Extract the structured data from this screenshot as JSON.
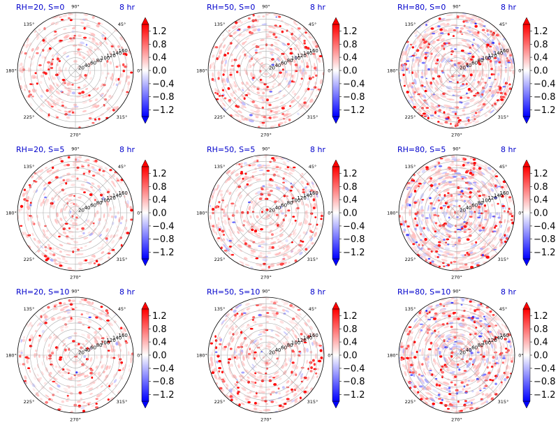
{
  "figure": {
    "time_label": "8 hr",
    "row_labels": [
      "S=0",
      "S=5",
      "S=10"
    ],
    "col_labels": [
      "RH=20",
      "RH=50",
      "RH=80"
    ]
  },
  "chart_data": [
    {
      "type": "scatter",
      "projection": "polar",
      "title": "RH=20, S=0",
      "annotation": "8 hr",
      "rh": 20,
      "s": 0,
      "density": 0.35,
      "rlim": [
        0,
        180
      ]
    },
    {
      "type": "scatter",
      "projection": "polar",
      "title": "RH=50, S=0",
      "annotation": "8 hr",
      "rh": 50,
      "s": 0,
      "density": 0.6,
      "rlim": [
        0,
        180
      ]
    },
    {
      "type": "scatter",
      "projection": "polar",
      "title": "RH=80, S=0",
      "annotation": "8 hr",
      "rh": 80,
      "s": 0,
      "density": 1.0,
      "rlim": [
        0,
        180
      ]
    },
    {
      "type": "scatter",
      "projection": "polar",
      "title": "RH=20, S=5",
      "annotation": "8 hr",
      "rh": 20,
      "s": 5,
      "density": 0.35,
      "rlim": [
        0,
        180
      ]
    },
    {
      "type": "scatter",
      "projection": "polar",
      "title": "RH=50, S=5",
      "annotation": "8 hr",
      "rh": 50,
      "s": 5,
      "density": 0.6,
      "rlim": [
        0,
        180
      ]
    },
    {
      "type": "scatter",
      "projection": "polar",
      "title": "RH=80, S=5",
      "annotation": "8 hr",
      "rh": 80,
      "s": 5,
      "density": 1.0,
      "rlim": [
        0,
        180
      ]
    },
    {
      "type": "scatter",
      "projection": "polar",
      "title": "RH=20, S=10",
      "annotation": "8 hr",
      "rh": 20,
      "s": 10,
      "density": 0.35,
      "rlim": [
        0,
        180
      ]
    },
    {
      "type": "scatter",
      "projection": "polar",
      "title": "RH=50, S=10",
      "annotation": "8 hr",
      "rh": 50,
      "s": 10,
      "density": 0.6,
      "rlim": [
        0,
        180
      ]
    },
    {
      "type": "scatter",
      "projection": "polar",
      "title": "RH=80, S=10",
      "annotation": "8 hr",
      "rh": 80,
      "s": 10,
      "density": 1.0,
      "rlim": [
        0,
        180
      ]
    }
  ],
  "axes": {
    "angular_ticks": [
      "0°",
      "45°",
      "90°",
      "135°",
      "180°",
      "225°",
      "270°",
      "315°"
    ],
    "radial_ticks": [
      "20",
      "40",
      "60",
      "80",
      "100",
      "120",
      "140",
      "160"
    ],
    "radial_values": [
      20,
      40,
      60,
      80,
      100,
      120,
      140,
      160
    ],
    "rmax": 180
  },
  "colorbar": {
    "cmap": "bwr",
    "ticks": [
      "1.2",
      "0.8",
      "0.4",
      "0.0",
      "−0.4",
      "−0.8",
      "−1.2"
    ],
    "tick_values": [
      1.2,
      0.8,
      0.4,
      0.0,
      -0.4,
      -0.8,
      -1.2
    ],
    "vmin": -1.4,
    "vmax": 1.4,
    "extend": "both"
  },
  "colors": {
    "positive": "#ff0000",
    "negative": "#0000ff",
    "neutral": "#ffffff",
    "title": "#0000cc",
    "grid": "#b0b0b0"
  }
}
